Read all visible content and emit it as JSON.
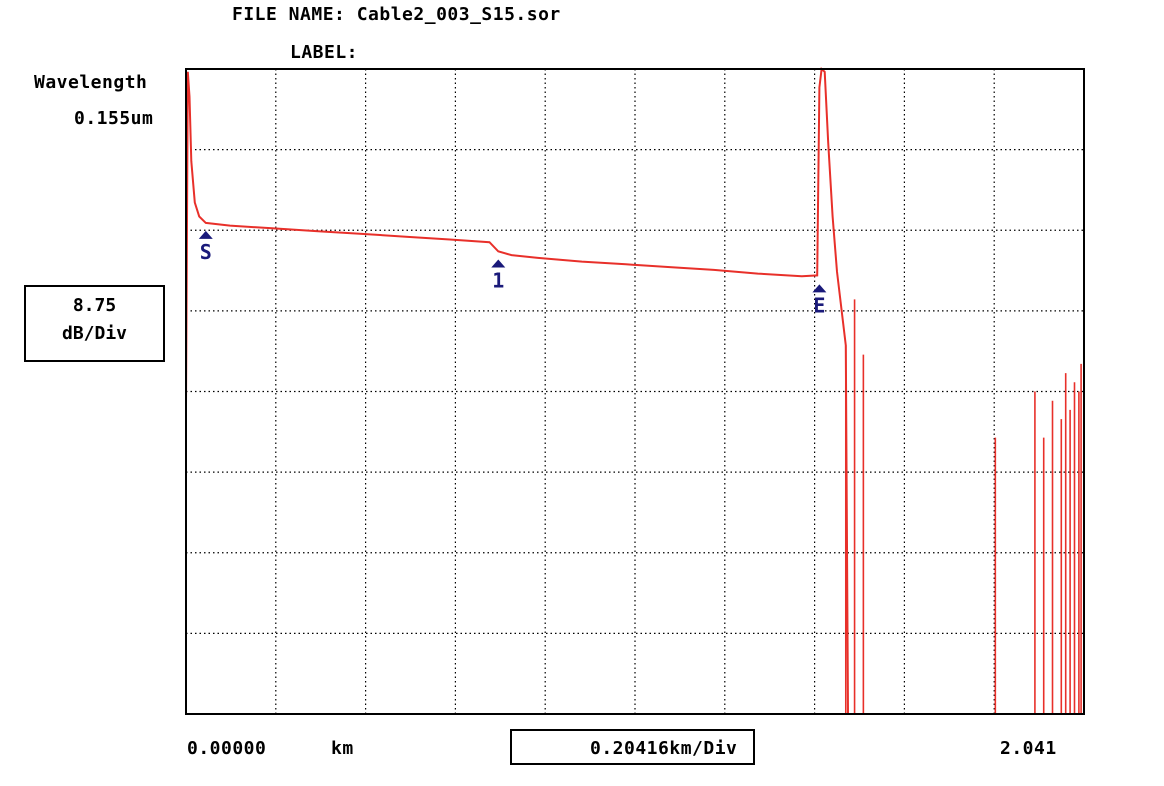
{
  "header": {
    "file_name_label": "FILE NAME: Cable2_003_S15.sor",
    "label_label": "LABEL:"
  },
  "wavelength": {
    "title": "Wavelength",
    "value": "0.155um"
  },
  "y_scale": {
    "value": "8.75",
    "unit": "dB/Div"
  },
  "x_axis": {
    "start": "0.00000",
    "unit": "km",
    "division": "0.20416km/Div",
    "end": "2.041"
  },
  "colors": {
    "trace": "#e8302a",
    "marker": "#1a1a7a",
    "grid": "#000000"
  },
  "chart_data": {
    "type": "line",
    "title": "",
    "xlabel": "km",
    "ylabel": "dB",
    "xlim": [
      0,
      2.0416
    ],
    "ylim": [
      -70,
      0
    ],
    "grid": true,
    "x_divisions": 10,
    "y_divisions": 8,
    "markers": [
      {
        "label": "S",
        "x": 0.045
      },
      {
        "label": "1",
        "x": 0.71
      },
      {
        "label": "E",
        "x": 1.44
      }
    ],
    "series": [
      {
        "values_x": [
          0.0,
          0.004,
          0.008,
          0.012,
          0.02,
          0.03,
          0.045,
          0.1,
          0.2,
          0.3,
          0.4,
          0.5,
          0.6,
          0.69,
          0.71,
          0.74,
          0.8,
          0.9,
          1.0,
          1.1,
          1.2,
          1.3,
          1.4,
          1.435,
          1.44,
          1.445,
          1.452,
          1.46,
          1.47,
          1.48,
          1.5,
          1.505
        ],
        "values_y": [
          -36.5,
          -0.3,
          -3.0,
          -10.0,
          -14.5,
          -16.0,
          -16.7,
          -17.0,
          -17.3,
          -17.6,
          -17.9,
          -18.2,
          -18.5,
          -18.8,
          -19.8,
          -20.2,
          -20.5,
          -20.9,
          -21.2,
          -21.5,
          -21.8,
          -22.2,
          -22.5,
          -22.4,
          -2.0,
          0.0,
          -0.3,
          -8.0,
          -16.0,
          -22.0,
          -30.0,
          -70.0
        ]
      }
    ]
  }
}
